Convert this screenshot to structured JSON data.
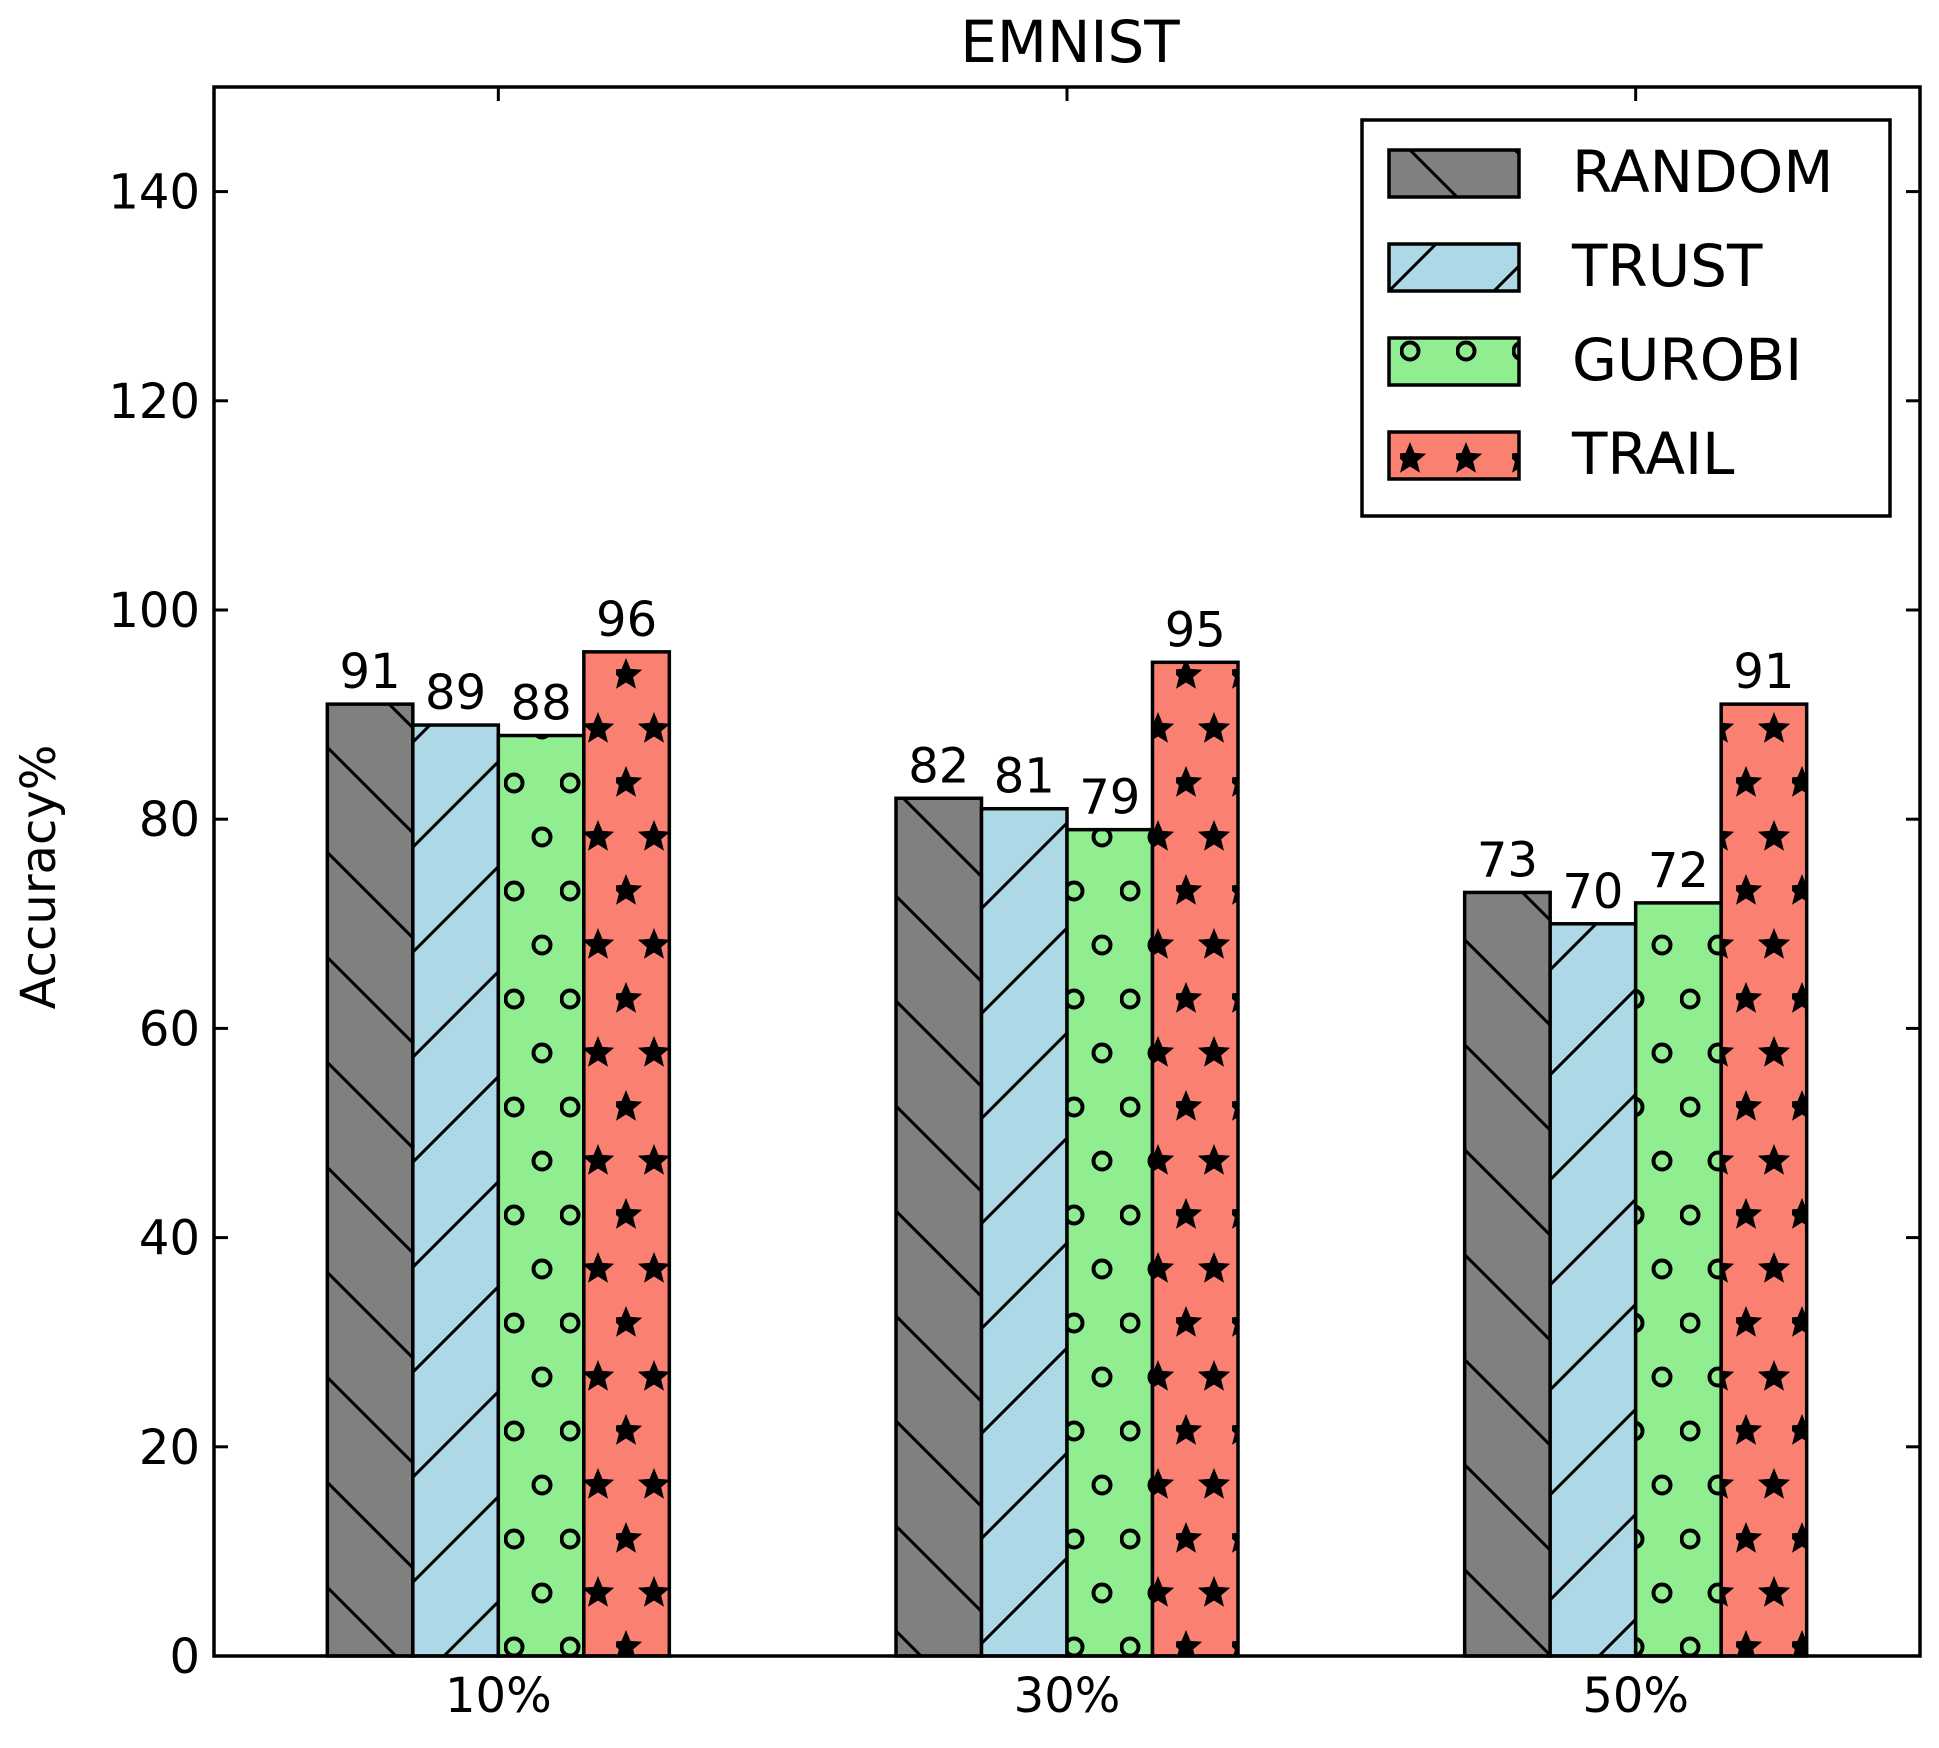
{
  "chart_data": {
    "type": "bar",
    "title": "EMNIST",
    "xlabel": "",
    "ylabel": "Accuracy%",
    "categories": [
      "10%",
      "30%",
      "50%"
    ],
    "ylim": [
      0,
      150
    ],
    "yticks": [
      0,
      20,
      40,
      60,
      80,
      100,
      120,
      140
    ],
    "grid": false,
    "legend_position": "top-right",
    "series": [
      {
        "name": "RANDOM",
        "values": [
          91,
          82,
          73
        ],
        "color": "#808080",
        "hatch": "backslash"
      },
      {
        "name": "TRUST",
        "values": [
          89,
          81,
          70
        ],
        "color": "#add8e6",
        "hatch": "slash"
      },
      {
        "name": "GUROBI",
        "values": [
          88,
          79,
          72
        ],
        "color": "#90ee90",
        "hatch": "circles"
      },
      {
        "name": "TRAIL",
        "values": [
          96,
          95,
          91
        ],
        "color": "#fa8072",
        "hatch": "stars"
      }
    ]
  }
}
